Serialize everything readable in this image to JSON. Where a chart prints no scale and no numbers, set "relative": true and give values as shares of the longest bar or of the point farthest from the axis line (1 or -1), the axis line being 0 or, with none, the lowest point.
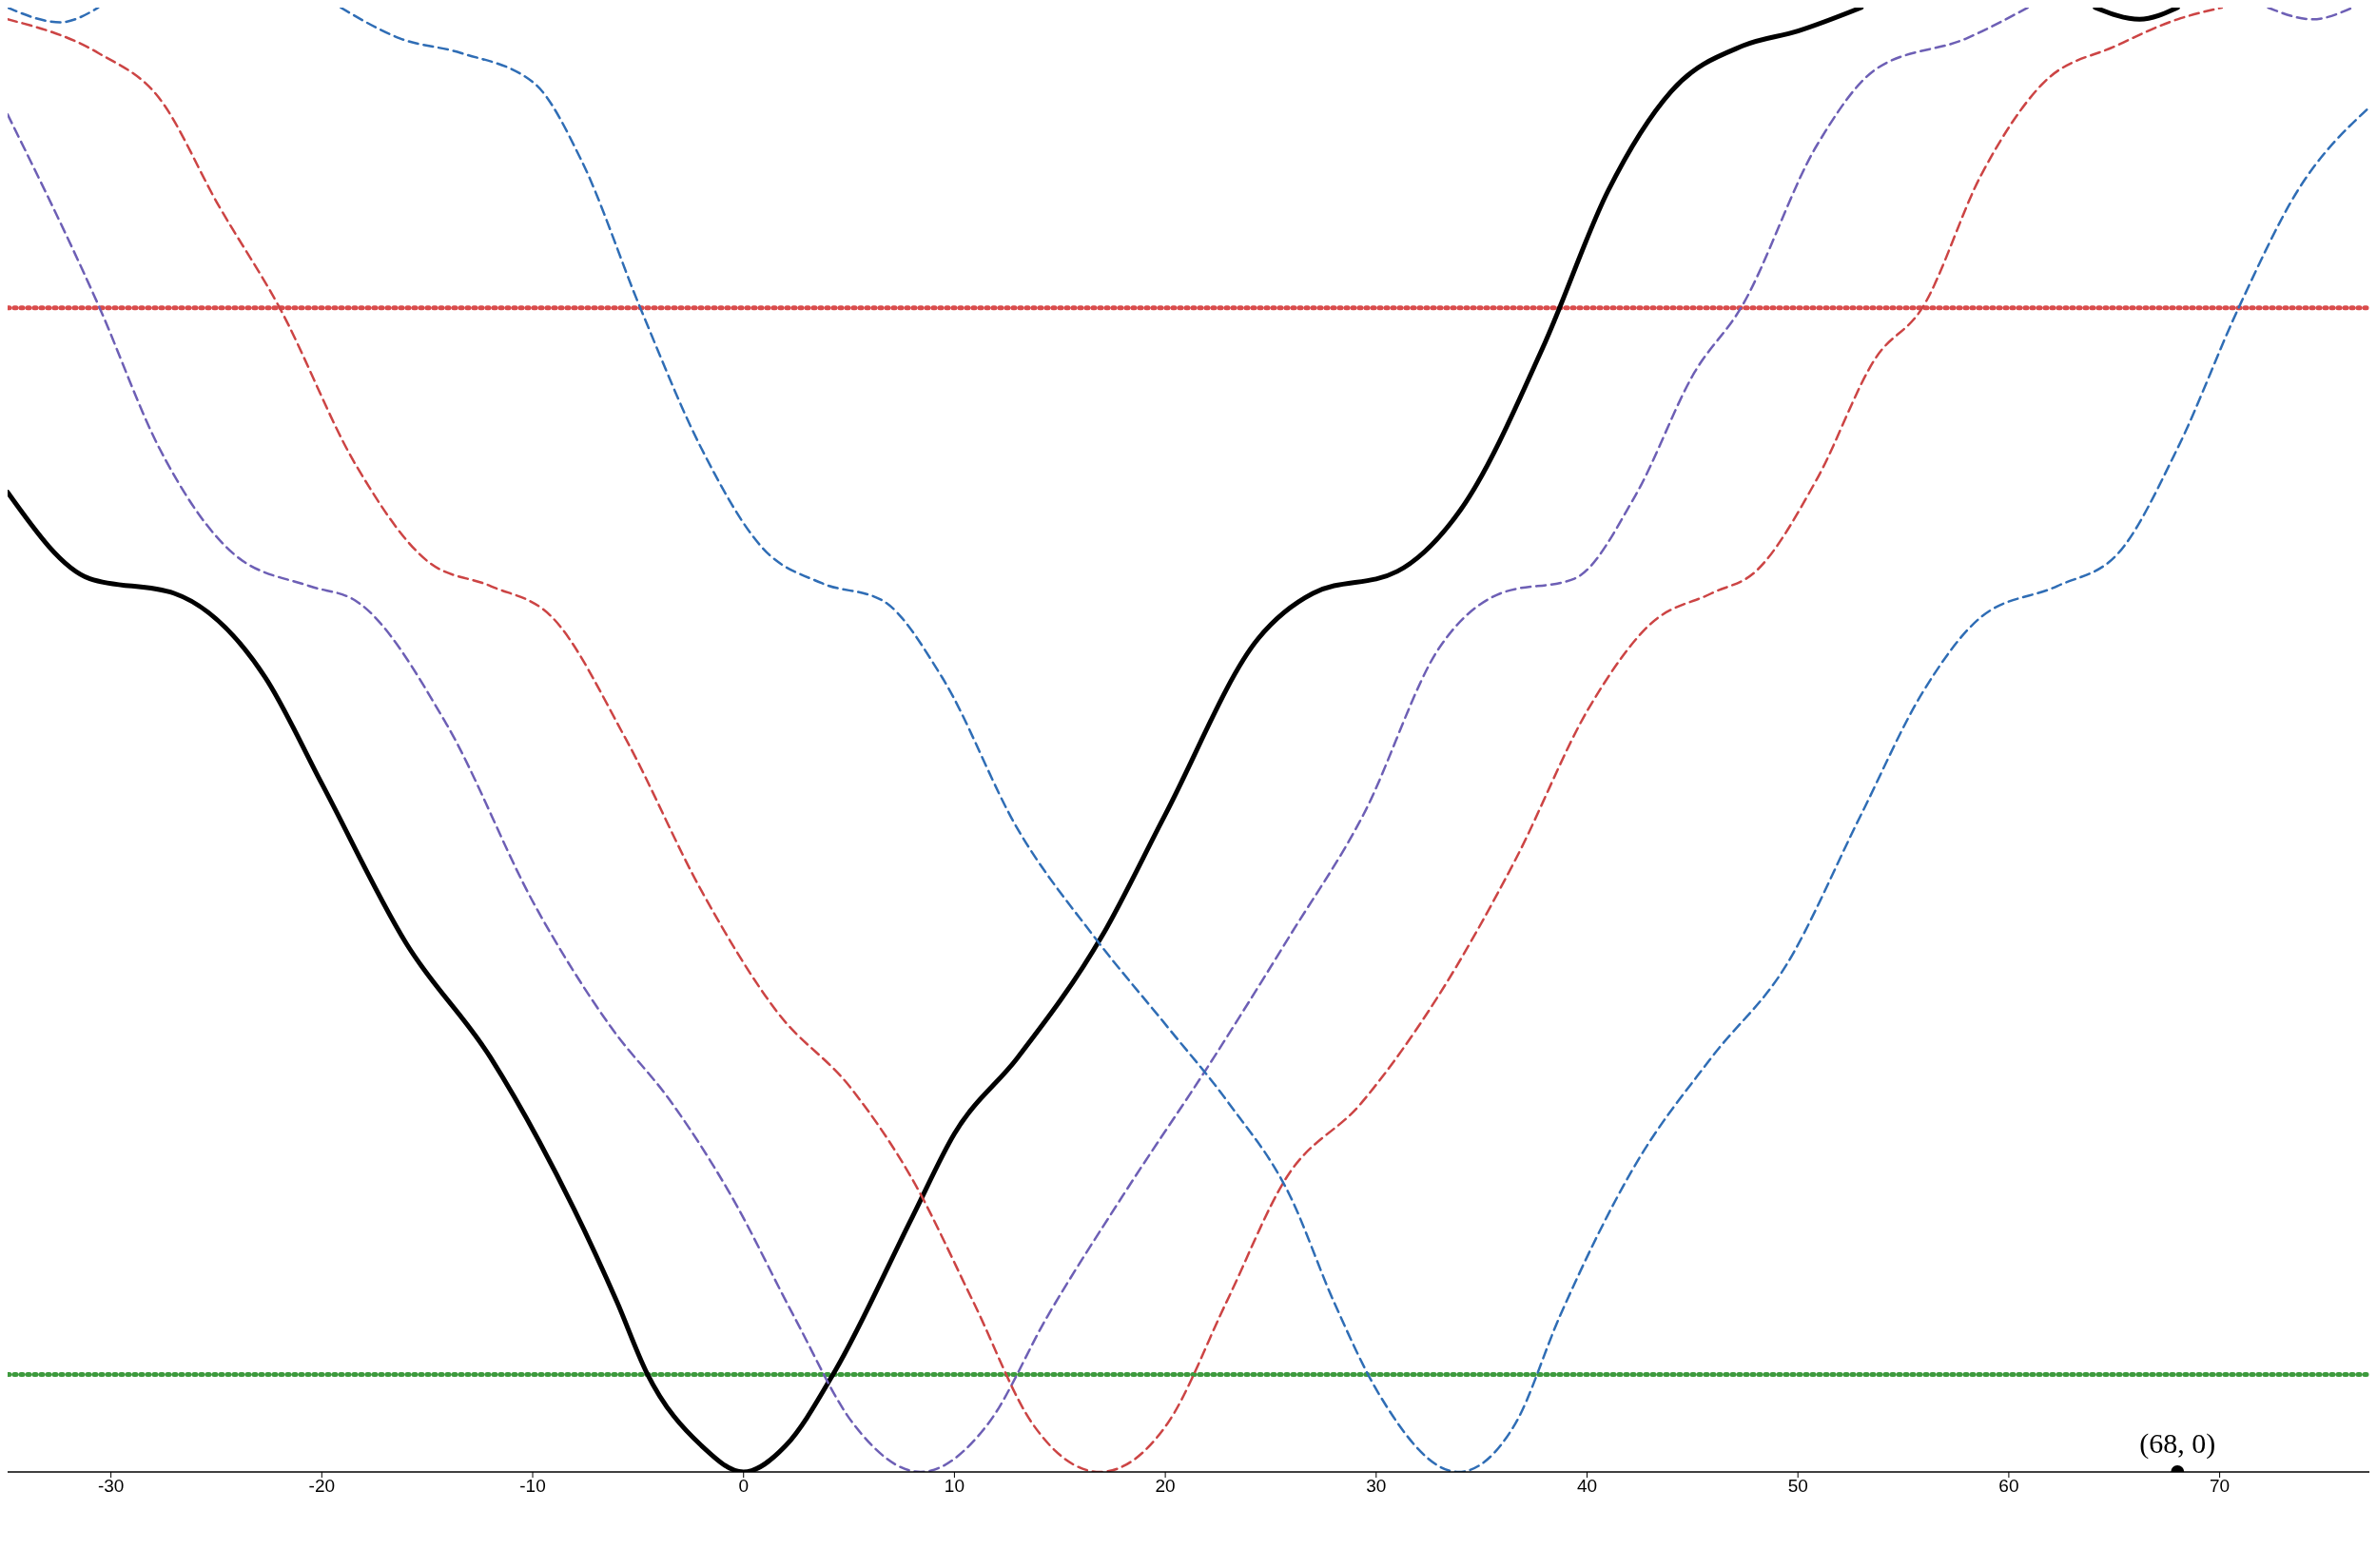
{
  "chart_data": {
    "type": "line",
    "relative": true,
    "xlim": [
      -34.9,
      77.1
    ],
    "xticks": [
      -30,
      -20,
      -10,
      0,
      10,
      20,
      30,
      40,
      50,
      60,
      70
    ],
    "series": [
      {
        "color": "#000000",
        "line_style": "solid",
        "x": [
          -34.9,
          -31,
          -27,
          -22.7,
          -20,
          -16,
          -12,
          -9.7,
          -6,
          -4.6,
          -2,
          0,
          2,
          4.3,
          8,
          10,
          13,
          17,
          20,
          24.4,
          27,
          31,
          34,
          38,
          41,
          44,
          47.4,
          50,
          53,
          58,
          64.1,
          66.2,
          68
        ],
        "values": [
          0.669,
          0.61,
          0.6,
          0.543,
          0.47,
          0.361,
          0.283,
          0.226,
          0.116,
          0.068,
          0.018,
          0,
          0.018,
          0.068,
          0.174,
          0.231,
          0.283,
          0.366,
          0.449,
          0.569,
          0.6,
          0.615,
          0.657,
          0.771,
          0.875,
          0.943,
          0.974,
          0.984,
          1,
          null,
          1,
          0.992,
          1
        ]
      },
      {
        "color": "#6d5fb5",
        "line_style": "dashed",
        "x": [
          -34.9,
          -30.6,
          -27.7,
          -24.1,
          -20.6,
          -18.4,
          -14.1,
          -9.9,
          -6.3,
          -3.4,
          -0.6,
          2.4,
          5.2,
          8.4,
          11.6,
          14.4,
          18,
          22.3,
          25.9,
          29.4,
          33,
          35.9,
          39.4,
          42.3,
          45.1,
          47.3,
          50.9,
          53.7,
          58,
          60.9,
          66,
          72.3,
          74.4,
          76.3
        ],
        "values": [
          0.927,
          0.797,
          0.699,
          0.626,
          0.605,
          0.595,
          0.511,
          0.387,
          0.304,
          0.252,
          0.189,
          0.106,
          0.033,
          0,
          0.033,
          0.106,
          0.189,
          0.283,
          0.366,
          0.449,
          0.563,
          0.6,
          0.61,
          0.667,
          0.751,
          0.795,
          0.906,
          0.958,
          0.979,
          1,
          null,
          1,
          0.992,
          1
        ]
      },
      {
        "color": "#cc4444",
        "line_style": "dashed",
        "x": [
          -34.9,
          -30.6,
          -27.7,
          -24.9,
          -22,
          -18.4,
          -14.9,
          -12,
          -9.1,
          -5.6,
          -2,
          1.6,
          5.1,
          8,
          10.9,
          13.7,
          16.9,
          20.1,
          22.9,
          25.7,
          29.3,
          32.9,
          36.6,
          40.1,
          43,
          45.9,
          48,
          50.9,
          53.7,
          55.9,
          58.7,
          61.6,
          65.1,
          68,
          70.1
        ],
        "values": [
          0.992,
          0.969,
          0.938,
          0.865,
          0.795,
          0.688,
          0.621,
          0.605,
          0.584,
          0.501,
          0.397,
          0.314,
          0.262,
          0.2,
          0.116,
          0.033,
          0,
          0.033,
          0.116,
          0.2,
          0.252,
          0.324,
          0.418,
          0.522,
          0.579,
          0.6,
          0.615,
          0.678,
          0.761,
          0.795,
          0.886,
          0.948,
          0.974,
          0.992,
          1
        ]
      },
      {
        "color": "#2f6db5",
        "line_style": "dashed",
        "x": [
          -34.9,
          -32.4,
          -30.6,
          -25,
          -19.1,
          -16.3,
          -13.4,
          -9.9,
          -7.7,
          -4.9,
          -2,
          0.9,
          3.7,
          6.6,
          9.4,
          13,
          16.6,
          20.1,
          23,
          25.9,
          28,
          30.1,
          33.9,
          36.6,
          38.7,
          42.3,
          45.9,
          49.4,
          53,
          55.9,
          58.7,
          62.3,
          65.1,
          68,
          70.9,
          73.7,
          77.1
        ],
        "values": [
          1,
          0.99,
          1,
          null,
          1,
          0.979,
          0.969,
          0.948,
          0.896,
          0.795,
          0.699,
          0.631,
          0.607,
          0.595,
          0.543,
          0.439,
          0.366,
          0.304,
          0.252,
          0.189,
          0.116,
          0.054,
          0,
          0.033,
          0.106,
          0.21,
          0.283,
          0.345,
          0.449,
          0.532,
          0.584,
          0.605,
          0.626,
          0.699,
          0.795,
          0.875,
          0.932
        ]
      },
      {
        "type": "scatter",
        "color": "#000000",
        "x": [
          68
        ],
        "values": [
          0
        ]
      }
    ],
    "ref_lines": [
      {
        "axis": "y",
        "value": 0.795,
        "color": "#d94c4c",
        "line_style": "dotted"
      },
      {
        "axis": "y",
        "value": 0.0665,
        "color": "#3d9a3d",
        "line_style": "dotted"
      }
    ],
    "annotations": [
      {
        "text": "(68, 0)",
        "x": 68,
        "y": 0
      }
    ]
  }
}
